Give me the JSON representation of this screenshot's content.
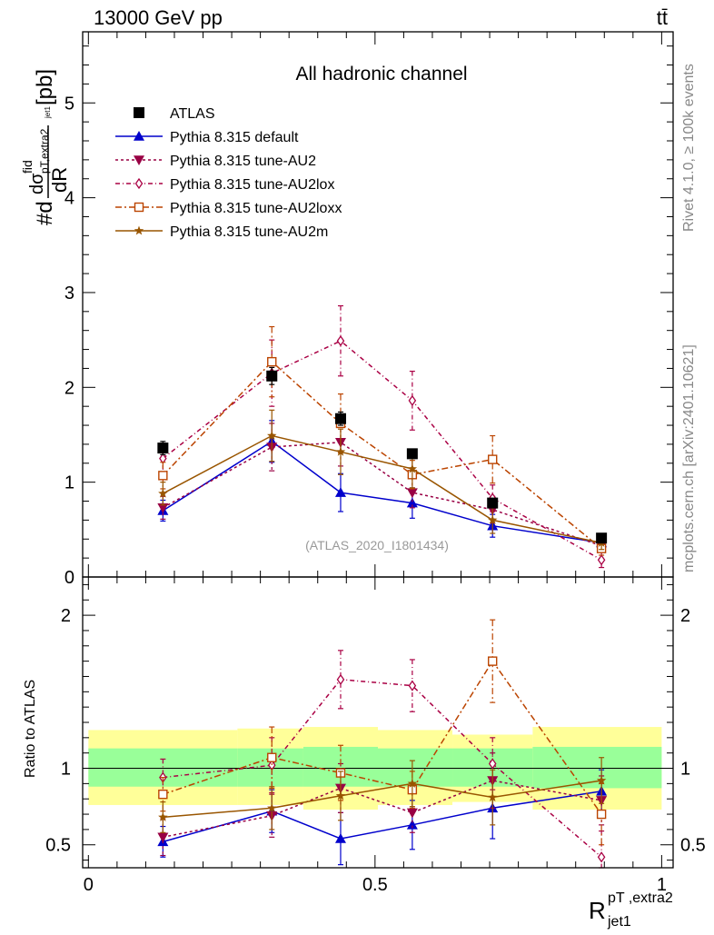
{
  "header": {
    "energy_label": "13000 GeV pp",
    "process_label": "tt̄",
    "channel_title": "All hadronic channel",
    "analysis_id": "(ATLAS_2020_I1801434)",
    "rivet_label": "Rivet 4.1.0, ≥ 100k events",
    "mcplots_label": "mcplots.cern.ch [arXiv:2401.10621]"
  },
  "chart_data": {
    "type": "line",
    "title": "All hadronic channel",
    "xlabel": "R_jet1^(pT,extra2)",
    "xlabel_main": "R",
    "xlabel_sub": "jet1",
    "xlabel_sup": "pT ,extra2",
    "ylabel": "#d dσ^fid_(pT,extra2 jet1) / dR [pb]",
    "ylabel_prefix": "#d",
    "ylabel_sigma": "dσ",
    "ylabel_sigma_sup": "fid",
    "ylabel_sigma_sub": "pT,extra2",
    "ylabel_sigma_subsub": "jet1",
    "ylabel_den": "dR",
    "ylabel_unit": "[pb]",
    "ratio_ylabel": "Ratio to ATLAS",
    "xlim": [
      -0.01,
      1.02
    ],
    "ylim": [
      0,
      5.75
    ],
    "ratio_ylim": [
      0.35,
      2.25
    ],
    "x_ticks": [
      0,
      0.5,
      1
    ],
    "x_tick_labels": [
      "0",
      "0.5",
      "1"
    ],
    "y_ticks": [
      0,
      1,
      2,
      3,
      4,
      5
    ],
    "y_tick_labels": [
      "0",
      "1",
      "2",
      "3",
      "4",
      "5"
    ],
    "ratio_ticks": [
      0.5,
      1,
      2
    ],
    "ratio_tick_labels": [
      "0.5",
      "1",
      "2"
    ],
    "x": [
      0.13,
      0.32,
      0.44,
      0.565,
      0.705,
      0.895
    ],
    "bin_edges": [
      0,
      0.26,
      0.375,
      0.505,
      0.635,
      0.775,
      1.0
    ],
    "ratio_band_inner": [
      [
        0.88,
        1.13
      ],
      [
        0.88,
        1.13
      ],
      [
        0.88,
        1.14
      ],
      [
        0.88,
        1.13
      ],
      [
        0.88,
        1.13
      ],
      [
        0.87,
        1.14
      ]
    ],
    "ratio_band_outer": [
      [
        0.76,
        1.25
      ],
      [
        0.76,
        1.26
      ],
      [
        0.73,
        1.27
      ],
      [
        0.76,
        1.25
      ],
      [
        0.78,
        1.22
      ],
      [
        0.73,
        1.27
      ]
    ],
    "data": {
      "name": "ATLAS",
      "values": [
        1.36,
        2.12,
        1.67,
        1.3,
        0.78,
        0.41
      ],
      "errors": [
        0.07,
        0.09,
        0.07,
        0.05,
        0.05,
        0.03
      ]
    },
    "series": [
      {
        "name": "Pythia 8.315 default",
        "color": "#0000cc",
        "dash": "",
        "marker": "triangle-up",
        "values": [
          0.7,
          1.43,
          0.89,
          0.78,
          0.54,
          0.36
        ],
        "errors": [
          0.11,
          0.22,
          0.2,
          0.16,
          0.12,
          0.06
        ],
        "ratio": [
          0.52,
          0.72,
          0.54,
          0.63,
          0.74,
          0.85
        ],
        "ratio_errors": [
          0.1,
          0.14,
          0.17,
          0.16,
          0.2,
          0.14
        ]
      },
      {
        "name": "Pythia 8.315 tune-AU2",
        "color": "#990044",
        "dash": "3,3",
        "marker": "triangle-down",
        "values": [
          0.73,
          1.37,
          1.42,
          0.89,
          0.71,
          0.33
        ],
        "errors": [
          0.12,
          0.25,
          0.25,
          0.16,
          0.14,
          0.06
        ],
        "ratio": [
          0.55,
          0.69,
          0.87,
          0.71,
          0.92,
          0.79
        ],
        "ratio_errors": [
          0.12,
          0.14,
          0.16,
          0.13,
          0.18,
          0.16
        ]
      },
      {
        "name": "Pythia 8.315 tune-AU2lox",
        "color": "#aa0044",
        "dash": "5,3,1,3",
        "marker": "diamond",
        "values": [
          1.25,
          2.15,
          2.49,
          1.86,
          0.83,
          0.18
        ],
        "errors": [
          0.16,
          0.35,
          0.37,
          0.31,
          0.14,
          0.08
        ],
        "ratio": [
          0.94,
          1.02,
          1.58,
          1.54,
          1.03,
          0.42
        ],
        "ratio_errors": [
          0.12,
          0.18,
          0.19,
          0.17,
          0.17,
          0.17
        ]
      },
      {
        "name": "Pythia 8.315 tune-AU2loxx",
        "color": "#bb4400",
        "dash": "7,3,2,3",
        "marker": "square-open",
        "values": [
          1.07,
          2.27,
          1.62,
          1.08,
          1.24,
          0.3
        ],
        "errors": [
          0.14,
          0.37,
          0.31,
          0.15,
          0.25,
          0.07
        ],
        "ratio": [
          0.83,
          1.07,
          0.97,
          0.86,
          1.7,
          0.7
        ],
        "ratio_errors": [
          0.11,
          0.2,
          0.18,
          0.12,
          0.27,
          0.2
        ]
      },
      {
        "name": "Pythia 8.315 tune-AU2m",
        "color": "#995500",
        "dash": "",
        "marker": "star",
        "values": [
          0.88,
          1.49,
          1.32,
          1.14,
          0.6,
          0.36
        ],
        "errors": [
          0.12,
          0.27,
          0.24,
          0.2,
          0.14,
          0.07
        ],
        "ratio": [
          0.68,
          0.74,
          0.82,
          0.9,
          0.81,
          0.92
        ],
        "ratio_errors": [
          0.1,
          0.14,
          0.16,
          0.15,
          0.18,
          0.15
        ]
      }
    ]
  }
}
